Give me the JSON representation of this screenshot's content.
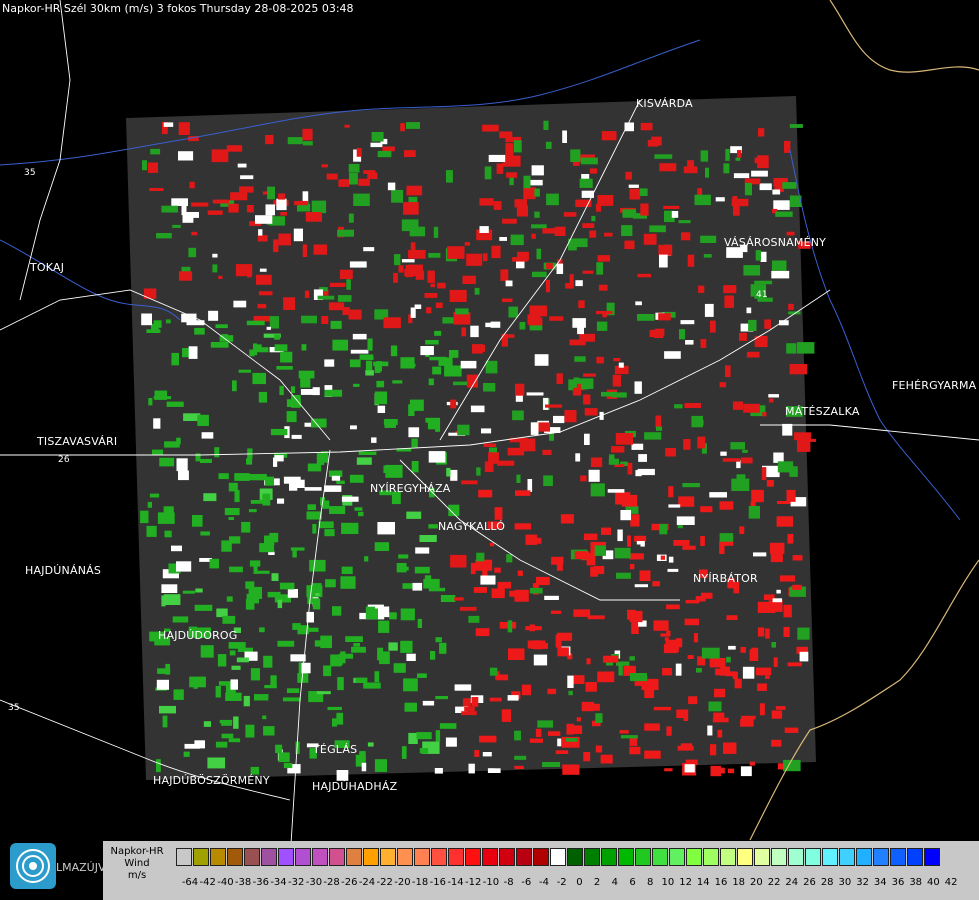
{
  "header": {
    "title": "Napkor-HR Szél 30km (m/s) 3 fokos Thursday 28-08-2025 03:48"
  },
  "map": {
    "places": [
      {
        "id": "kisvarda",
        "name": "KISVÁRDA"
      },
      {
        "id": "tokaj",
        "name": "TOKAJ"
      },
      {
        "id": "vasarosnameny",
        "name": "VÁSÁROSNAMÉNY"
      },
      {
        "id": "fehergyarmat",
        "name": "FEHÉRGYARMA"
      },
      {
        "id": "mateszalka",
        "name": "MÁTÉSZALKA"
      },
      {
        "id": "tiszavasvari",
        "name": "TISZAVASVÁRI"
      },
      {
        "id": "nyiregyhaza",
        "name": "NYÍREGYHÁZA"
      },
      {
        "id": "nagykallo",
        "name": "NAGYKALLÓ"
      },
      {
        "id": "hajdunanas",
        "name": "HAJDÚNÁNÁS"
      },
      {
        "id": "nyirbator",
        "name": "NYÍRBÁTOR"
      },
      {
        "id": "hajdudorog",
        "name": "HAJDÚDOROG"
      },
      {
        "id": "teglas",
        "name": "TÉGLÁS"
      },
      {
        "id": "hajduboszormeny",
        "name": "HAJDÚBÖSZÖRMÉNY"
      },
      {
        "id": "hajduhadhaz",
        "name": "HAJDÚHADHÁZ"
      },
      {
        "id": "almazujvaros",
        "name": "LMAZÚJVÁR"
      }
    ],
    "road_numbers": [
      "35",
      "26",
      "35",
      "41"
    ]
  },
  "legend": {
    "label_line1": "Napkor-HR",
    "label_line2": "Wind",
    "label_line3": "m/s",
    "swatch_colors": [
      "#c8c8c8",
      "#a0a000",
      "#b88a00",
      "#a05a0a",
      "#9a5050",
      "#a050a0",
      "#a050ff",
      "#b050d0",
      "#c050c0",
      "#d05090",
      "#e08040",
      "#ffa000",
      "#ffb030",
      "#ff9050",
      "#ff8050",
      "#ff5040",
      "#ff3030",
      "#ff1010",
      "#e80010",
      "#d00010",
      "#b80010",
      "#b00000",
      "#ffffff",
      "#006000",
      "#008000",
      "#00a000",
      "#00b800",
      "#20c820",
      "#40e040",
      "#60f060",
      "#80ff40",
      "#a0ff60",
      "#c0ff80",
      "#ffff80",
      "#e0ffa0",
      "#c0ffc0",
      "#a0ffd0",
      "#80ffe0",
      "#60f0ff",
      "#40d0ff",
      "#20b0ff",
      "#2080ff",
      "#1060ff",
      "#0040ff",
      "#0000ff"
    ],
    "ticks": [
      "-64",
      "-42",
      "-40",
      "-38",
      "-36",
      "-34",
      "-32",
      "-30",
      "-28",
      "-26",
      "-24",
      "-22",
      "-20",
      "-18",
      "-16",
      "-14",
      "-12",
      "-10",
      "-8",
      "-6",
      "-4",
      "-2",
      "0",
      "2",
      "4",
      "6",
      "8",
      "10",
      "12",
      "14",
      "16",
      "18",
      "20",
      "22",
      "24",
      "26",
      "28",
      "30",
      "32",
      "34",
      "36",
      "38",
      "40",
      "42"
    ],
    "logo_text": "LMAZÚJVÁR"
  }
}
